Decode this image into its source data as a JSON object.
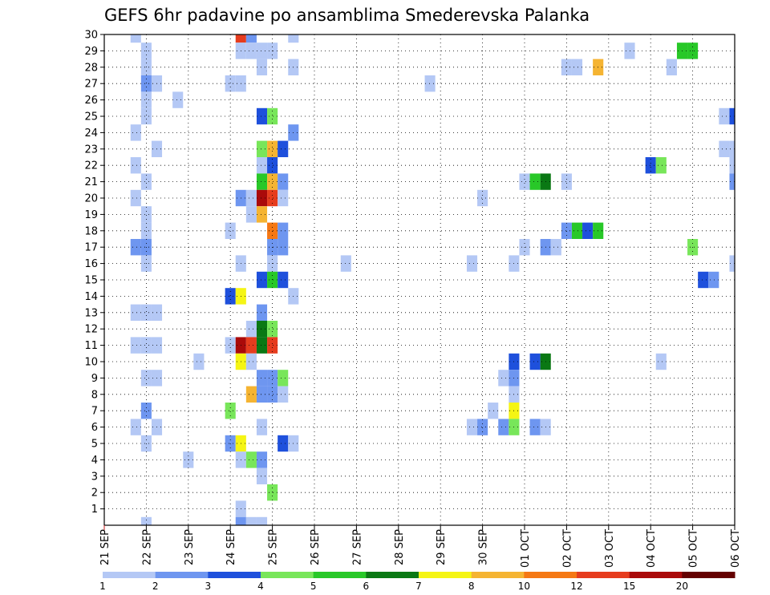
{
  "chart_data": {
    "type": "heatmap",
    "title": "GEFS 6hr padavine po ansamblima Smederevska Palanka",
    "xlabel": "",
    "ylabel": "",
    "x_tick_labels": [
      "21 SEP",
      "22 SEP",
      "23 SEP",
      "24 SEP",
      "25 SEP",
      "26 SEP",
      "27 SEP",
      "28 SEP",
      "29 SEP",
      "30 SEP",
      "01 OCT",
      "02 OCT",
      "03 OCT",
      "04 OCT",
      "05 OCT",
      "06 OCT"
    ],
    "xlim_days": [
      0,
      15
    ],
    "time_step_hours": 6,
    "y_tick_labels": [
      "1",
      "2",
      "3",
      "4",
      "5",
      "6",
      "7",
      "8",
      "9",
      "10",
      "11",
      "12",
      "13",
      "14",
      "15",
      "16",
      "17",
      "18",
      "19",
      "20",
      "21",
      "22",
      "23",
      "24",
      "25",
      "26",
      "27",
      "28",
      "29",
      "30"
    ],
    "ylim": [
      0,
      30
    ],
    "grid": true,
    "legend": {
      "placement": "bottom",
      "levels": [
        "1",
        "2",
        "3",
        "4",
        "5",
        "6",
        "7",
        "8",
        "10",
        "12",
        "15",
        "20"
      ],
      "colors": [
        "#b4c8f5",
        "#6e96f0",
        "#1e50dc",
        "#78e65a",
        "#28c828",
        "#0a7814",
        "#f5f514",
        "#f5b432",
        "#f57814",
        "#e63c1e",
        "#aa0a0a",
        "#640000"
      ]
    },
    "cells": [
      {
        "m": 30,
        "d": 0.75,
        "b": 0
      },
      {
        "m": 30,
        "d": 3.25,
        "b": 9
      },
      {
        "m": 30,
        "d": 3.5,
        "b": 1
      },
      {
        "m": 30,
        "d": 4.5,
        "b": 0
      },
      {
        "m": 29,
        "d": 1,
        "b": 0
      },
      {
        "m": 29,
        "d": 3.25,
        "b": 0
      },
      {
        "m": 29,
        "d": 3.5,
        "b": 0
      },
      {
        "m": 29,
        "d": 3.75,
        "b": 0
      },
      {
        "m": 29,
        "d": 4,
        "b": 0
      },
      {
        "m": 29,
        "d": 12.5,
        "b": 0
      },
      {
        "m": 29,
        "d": 13.75,
        "b": 4
      },
      {
        "m": 29,
        "d": 14,
        "b": 4
      },
      {
        "m": 28,
        "d": 1,
        "b": 0
      },
      {
        "m": 28,
        "d": 3.75,
        "b": 0
      },
      {
        "m": 28,
        "d": 4.5,
        "b": 0
      },
      {
        "m": 28,
        "d": 11,
        "b": 0
      },
      {
        "m": 28,
        "d": 11.25,
        "b": 0
      },
      {
        "m": 28,
        "d": 11.75,
        "b": 7
      },
      {
        "m": 28,
        "d": 13.5,
        "b": 0
      },
      {
        "m": 27,
        "d": 1,
        "b": 1
      },
      {
        "m": 27,
        "d": 1.25,
        "b": 0
      },
      {
        "m": 27,
        "d": 3,
        "b": 0
      },
      {
        "m": 27,
        "d": 3.25,
        "b": 0
      },
      {
        "m": 27,
        "d": 7.75,
        "b": 0
      },
      {
        "m": 26,
        "d": 1,
        "b": 0
      },
      {
        "m": 26,
        "d": 1.75,
        "b": 0
      },
      {
        "m": 25,
        "d": 1,
        "b": 0
      },
      {
        "m": 25,
        "d": 3.75,
        "b": 2
      },
      {
        "m": 25,
        "d": 4,
        "b": 3
      },
      {
        "m": 25,
        "d": 14.75,
        "b": 0
      },
      {
        "m": 25,
        "d": 15,
        "b": 2
      },
      {
        "m": 24,
        "d": 0.75,
        "b": 0
      },
      {
        "m": 24,
        "d": 4.5,
        "b": 1
      },
      {
        "m": 23,
        "d": 1.25,
        "b": 0
      },
      {
        "m": 23,
        "d": 3.75,
        "b": 3
      },
      {
        "m": 23,
        "d": 4,
        "b": 7
      },
      {
        "m": 23,
        "d": 4.25,
        "b": 2
      },
      {
        "m": 23,
        "d": 14.75,
        "b": 0
      },
      {
        "m": 23,
        "d": 15,
        "b": 0
      },
      {
        "m": 22,
        "d": 0.75,
        "b": 0
      },
      {
        "m": 22,
        "d": 3.75,
        "b": 0
      },
      {
        "m": 22,
        "d": 4,
        "b": 2
      },
      {
        "m": 22,
        "d": 13,
        "b": 2
      },
      {
        "m": 22,
        "d": 13.25,
        "b": 3
      },
      {
        "m": 22,
        "d": 15,
        "b": 0
      },
      {
        "m": 21,
        "d": 1,
        "b": 0
      },
      {
        "m": 21,
        "d": 3.75,
        "b": 4
      },
      {
        "m": 21,
        "d": 4,
        "b": 7
      },
      {
        "m": 21,
        "d": 4.25,
        "b": 1
      },
      {
        "m": 21,
        "d": 10,
        "b": 0
      },
      {
        "m": 21,
        "d": 10.25,
        "b": 4
      },
      {
        "m": 21,
        "d": 10.5,
        "b": 5
      },
      {
        "m": 21,
        "d": 11,
        "b": 0
      },
      {
        "m": 21,
        "d": 15,
        "b": 1
      },
      {
        "m": 20,
        "d": 0.75,
        "b": 0
      },
      {
        "m": 20,
        "d": 3.25,
        "b": 1
      },
      {
        "m": 20,
        "d": 3.5,
        "b": 0
      },
      {
        "m": 20,
        "d": 3.75,
        "b": 10
      },
      {
        "m": 20,
        "d": 4,
        "b": 9
      },
      {
        "m": 20,
        "d": 4.25,
        "b": 0
      },
      {
        "m": 20,
        "d": 9,
        "b": 0
      },
      {
        "m": 19,
        "d": 1,
        "b": 0
      },
      {
        "m": 19,
        "d": 3.5,
        "b": 0
      },
      {
        "m": 19,
        "d": 3.75,
        "b": 7
      },
      {
        "m": 18,
        "d": 1,
        "b": 0
      },
      {
        "m": 18,
        "d": 3,
        "b": 0
      },
      {
        "m": 18,
        "d": 4,
        "b": 8
      },
      {
        "m": 18,
        "d": 4.25,
        "b": 1
      },
      {
        "m": 18,
        "d": 11,
        "b": 1
      },
      {
        "m": 18,
        "d": 11.25,
        "b": 4
      },
      {
        "m": 18,
        "d": 11.5,
        "b": 2
      },
      {
        "m": 18,
        "d": 11.75,
        "b": 4
      },
      {
        "m": 17,
        "d": 0.75,
        "b": 1
      },
      {
        "m": 17,
        "d": 1,
        "b": 1
      },
      {
        "m": 17,
        "d": 4,
        "b": 1
      },
      {
        "m": 17,
        "d": 4.25,
        "b": 1
      },
      {
        "m": 17,
        "d": 10,
        "b": 0
      },
      {
        "m": 17,
        "d": 10.5,
        "b": 1
      },
      {
        "m": 17,
        "d": 10.75,
        "b": 0
      },
      {
        "m": 17,
        "d": 14,
        "b": 3
      },
      {
        "m": 16,
        "d": 1,
        "b": 0
      },
      {
        "m": 16,
        "d": 3.25,
        "b": 0
      },
      {
        "m": 16,
        "d": 4,
        "b": 0
      },
      {
        "m": 16,
        "d": 5.75,
        "b": 0
      },
      {
        "m": 16,
        "d": 8.75,
        "b": 0
      },
      {
        "m": 16,
        "d": 9.75,
        "b": 0
      },
      {
        "m": 16,
        "d": 15,
        "b": 0
      },
      {
        "m": 15,
        "d": 3.75,
        "b": 2
      },
      {
        "m": 15,
        "d": 4,
        "b": 4
      },
      {
        "m": 15,
        "d": 4.25,
        "b": 2
      },
      {
        "m": 15,
        "d": 14.25,
        "b": 2
      },
      {
        "m": 15,
        "d": 14.5,
        "b": 1
      },
      {
        "m": 14,
        "d": 3,
        "b": 2
      },
      {
        "m": 14,
        "d": 3.25,
        "b": 6
      },
      {
        "m": 14,
        "d": 4.5,
        "b": 0
      },
      {
        "m": 13,
        "d": 0.75,
        "b": 0
      },
      {
        "m": 13,
        "d": 1,
        "b": 0
      },
      {
        "m": 13,
        "d": 1.25,
        "b": 0
      },
      {
        "m": 13,
        "d": 3.75,
        "b": 1
      },
      {
        "m": 12,
        "d": 3.5,
        "b": 0
      },
      {
        "m": 12,
        "d": 3.75,
        "b": 5
      },
      {
        "m": 12,
        "d": 4,
        "b": 3
      },
      {
        "m": 11,
        "d": 0.75,
        "b": 0
      },
      {
        "m": 11,
        "d": 1,
        "b": 0
      },
      {
        "m": 11,
        "d": 1.25,
        "b": 0
      },
      {
        "m": 11,
        "d": 3,
        "b": 0
      },
      {
        "m": 11,
        "d": 3.25,
        "b": 10
      },
      {
        "m": 11,
        "d": 3.5,
        "b": 9
      },
      {
        "m": 11,
        "d": 3.75,
        "b": 5
      },
      {
        "m": 11,
        "d": 4,
        "b": 9
      },
      {
        "m": 10,
        "d": 2.25,
        "b": 0
      },
      {
        "m": 10,
        "d": 3.25,
        "b": 6
      },
      {
        "m": 10,
        "d": 3.5,
        "b": 0
      },
      {
        "m": 10,
        "d": 9.75,
        "b": 2
      },
      {
        "m": 10,
        "d": 10.25,
        "b": 2
      },
      {
        "m": 10,
        "d": 10.5,
        "b": 5
      },
      {
        "m": 10,
        "d": 13.25,
        "b": 0
      },
      {
        "m": 9,
        "d": 1,
        "b": 0
      },
      {
        "m": 9,
        "d": 1.25,
        "b": 0
      },
      {
        "m": 9,
        "d": 3.75,
        "b": 1
      },
      {
        "m": 9,
        "d": 4,
        "b": 1
      },
      {
        "m": 9,
        "d": 4.25,
        "b": 3
      },
      {
        "m": 9,
        "d": 9.5,
        "b": 0
      },
      {
        "m": 9,
        "d": 9.75,
        "b": 1
      },
      {
        "m": 8,
        "d": 3.5,
        "b": 7
      },
      {
        "m": 8,
        "d": 3.75,
        "b": 1
      },
      {
        "m": 8,
        "d": 4,
        "b": 1
      },
      {
        "m": 8,
        "d": 4.25,
        "b": 0
      },
      {
        "m": 8,
        "d": 9.75,
        "b": 0
      },
      {
        "m": 7,
        "d": 1,
        "b": 1
      },
      {
        "m": 7,
        "d": 3,
        "b": 3
      },
      {
        "m": 7,
        "d": 9.25,
        "b": 0
      },
      {
        "m": 7,
        "d": 9.75,
        "b": 6
      },
      {
        "m": 6,
        "d": 0.75,
        "b": 0
      },
      {
        "m": 6,
        "d": 1.25,
        "b": 0
      },
      {
        "m": 6,
        "d": 3.75,
        "b": 0
      },
      {
        "m": 6,
        "d": 8.75,
        "b": 0
      },
      {
        "m": 6,
        "d": 9,
        "b": 1
      },
      {
        "m": 6,
        "d": 9.5,
        "b": 1
      },
      {
        "m": 6,
        "d": 9.75,
        "b": 3
      },
      {
        "m": 6,
        "d": 10.25,
        "b": 1
      },
      {
        "m": 6,
        "d": 10.5,
        "b": 0
      },
      {
        "m": 5,
        "d": 1,
        "b": 0
      },
      {
        "m": 5,
        "d": 3,
        "b": 1
      },
      {
        "m": 5,
        "d": 3.25,
        "b": 6
      },
      {
        "m": 5,
        "d": 4.25,
        "b": 2
      },
      {
        "m": 5,
        "d": 4.5,
        "b": 0
      },
      {
        "m": 4,
        "d": 2,
        "b": 0
      },
      {
        "m": 4,
        "d": 3.25,
        "b": 0
      },
      {
        "m": 4,
        "d": 3.5,
        "b": 3
      },
      {
        "m": 4,
        "d": 3.75,
        "b": 1
      },
      {
        "m": 3,
        "d": 3.75,
        "b": 0
      },
      {
        "m": 2,
        "d": 4,
        "b": 3
      },
      {
        "m": 1,
        "d": 3.25,
        "b": 0
      },
      {
        "m": 0,
        "d": 1,
        "b": 0
      },
      {
        "m": 0,
        "d": 3.25,
        "b": 1
      },
      {
        "m": 0,
        "d": 3.5,
        "b": 0
      },
      {
        "m": 0,
        "d": 3.75,
        "b": 0
      }
    ]
  }
}
